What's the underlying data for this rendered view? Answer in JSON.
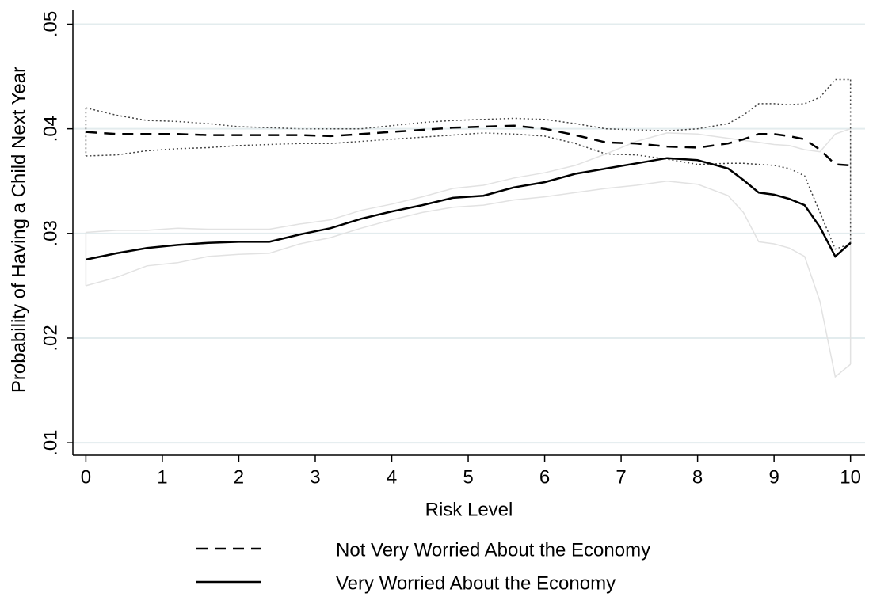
{
  "chart_data": {
    "type": "line",
    "x_label": "Risk Level",
    "y_label": "Probability of Having a Child Next Year",
    "x": [
      0,
      0.4,
      0.8,
      1.2,
      1.6,
      2,
      2.4,
      2.8,
      3.2,
      3.6,
      4,
      4.4,
      4.8,
      5.2,
      5.6,
      6,
      6.4,
      6.8,
      7.2,
      7.6,
      8,
      8.4,
      8.6,
      8.8,
      9,
      9.2,
      9.4,
      9.6,
      9.8,
      10
    ],
    "series": [
      {
        "name": "Not Very Worried About the Economy",
        "color": "#000000",
        "line_style": "dashed",
        "ci_color": "#444444",
        "ci_style": "dotted",
        "values": [
          0.0397,
          0.0395,
          0.0395,
          0.0395,
          0.0394,
          0.0394,
          0.0394,
          0.0394,
          0.0393,
          0.0395,
          0.0397,
          0.0399,
          0.0401,
          0.0402,
          0.0403,
          0.04,
          0.0394,
          0.0387,
          0.0386,
          0.0383,
          0.0382,
          0.0386,
          0.039,
          0.0395,
          0.0395,
          0.0393,
          0.039,
          0.038,
          0.0366,
          0.0365
        ],
        "upper": [
          0.042,
          0.0413,
          0.0408,
          0.0407,
          0.0405,
          0.0402,
          0.0401,
          0.04,
          0.04,
          0.04,
          0.0403,
          0.0406,
          0.0408,
          0.0409,
          0.041,
          0.0409,
          0.0405,
          0.04,
          0.0399,
          0.0398,
          0.04,
          0.0405,
          0.0413,
          0.0424,
          0.0424,
          0.0423,
          0.0424,
          0.043,
          0.0447,
          0.0447
        ],
        "lower": [
          0.0374,
          0.0375,
          0.0379,
          0.0381,
          0.0382,
          0.0384,
          0.0385,
          0.0386,
          0.0386,
          0.0388,
          0.039,
          0.0392,
          0.0394,
          0.0396,
          0.0395,
          0.0393,
          0.0386,
          0.0376,
          0.0375,
          0.0371,
          0.0366,
          0.0367,
          0.0367,
          0.0366,
          0.0365,
          0.0362,
          0.0355,
          0.032,
          0.0285,
          0.029
        ]
      },
      {
        "name": "Very Worried About the Economy",
        "color": "#000000",
        "line_style": "solid",
        "ci_color": "#e2e2e2",
        "ci_style": "solid",
        "values": [
          0.0275,
          0.0281,
          0.0286,
          0.0289,
          0.0291,
          0.0292,
          0.0292,
          0.0299,
          0.0305,
          0.0314,
          0.0321,
          0.0327,
          0.0334,
          0.0336,
          0.0344,
          0.0349,
          0.0357,
          0.0362,
          0.0367,
          0.0372,
          0.037,
          0.0362,
          0.0351,
          0.0339,
          0.0337,
          0.0333,
          0.0327,
          0.0306,
          0.0278,
          0.0291
        ],
        "upper": [
          0.0301,
          0.0303,
          0.0303,
          0.0305,
          0.0304,
          0.0304,
          0.0304,
          0.0309,
          0.0313,
          0.0322,
          0.0328,
          0.0335,
          0.0343,
          0.0346,
          0.0353,
          0.0358,
          0.0365,
          0.0376,
          0.0388,
          0.0396,
          0.0395,
          0.0391,
          0.0389,
          0.0387,
          0.0385,
          0.0384,
          0.038,
          0.0378,
          0.0395,
          0.04
        ],
        "lower": [
          0.025,
          0.0258,
          0.0269,
          0.0272,
          0.0278,
          0.028,
          0.0281,
          0.029,
          0.0296,
          0.0305,
          0.0313,
          0.032,
          0.0325,
          0.0327,
          0.0332,
          0.0335,
          0.0339,
          0.0343,
          0.0346,
          0.035,
          0.0347,
          0.0336,
          0.032,
          0.0292,
          0.029,
          0.0286,
          0.0278,
          0.0235,
          0.0163,
          0.0175
        ]
      }
    ],
    "xlim": [
      -0.17,
      10.19
    ],
    "ylim": [
      0.0088,
      0.0514
    ],
    "xticks": [
      0,
      1,
      2,
      3,
      4,
      5,
      6,
      7,
      8,
      9,
      10
    ],
    "yticks": [
      {
        "value": 0.01,
        "label": ".01"
      },
      {
        "value": 0.02,
        "label": ".02"
      },
      {
        "value": 0.03,
        "label": ".03"
      },
      {
        "value": 0.04,
        "label": ".04"
      },
      {
        "value": 0.05,
        "label": ".05"
      }
    ],
    "grid": true,
    "grid_color": "#e3ecee",
    "legend_position": "bottom"
  }
}
